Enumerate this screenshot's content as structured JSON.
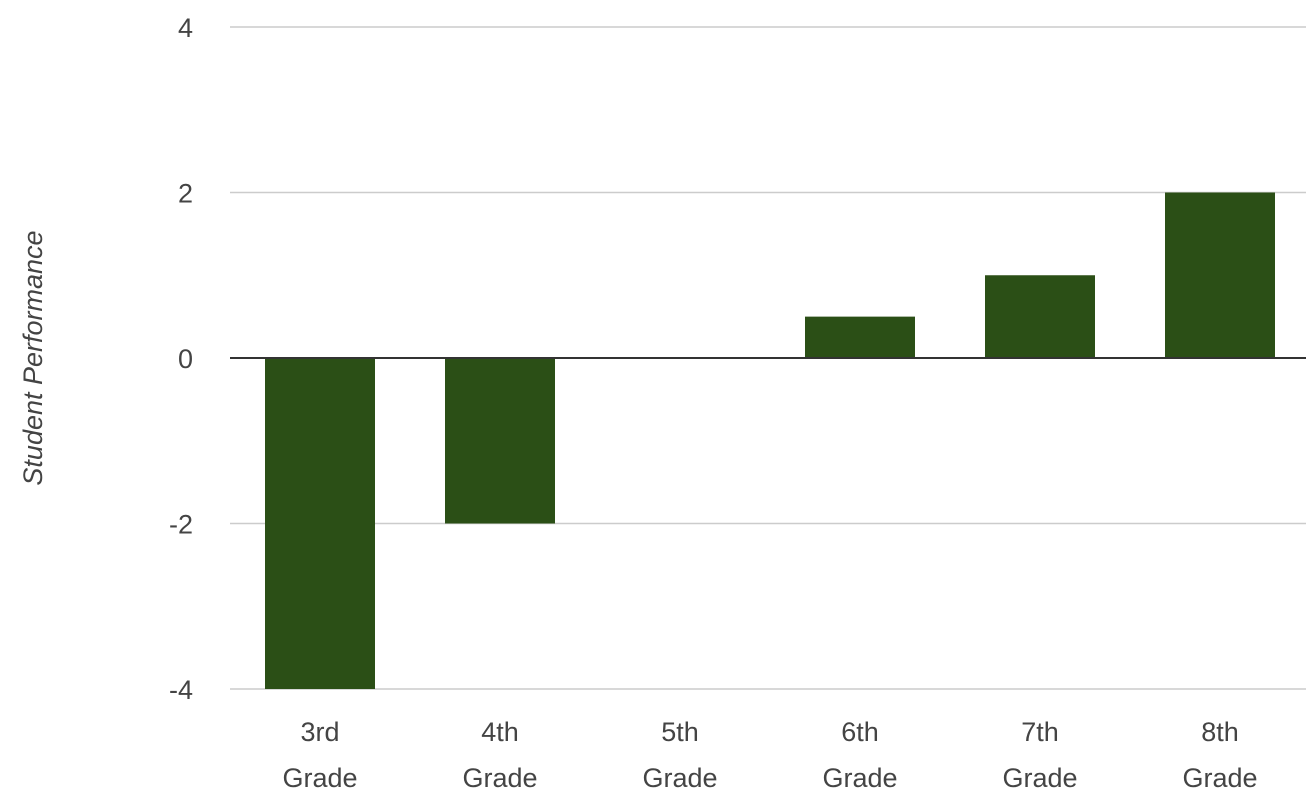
{
  "chart_data": {
    "type": "bar",
    "categories": [
      [
        "3rd",
        "Grade"
      ],
      [
        "4th",
        "Grade"
      ],
      [
        "5th",
        "Grade"
      ],
      [
        "6th",
        "Grade"
      ],
      [
        "7th",
        "Grade"
      ],
      [
        "8th",
        "Grade"
      ]
    ],
    "values": [
      -4,
      -2,
      0,
      0.5,
      1,
      2
    ],
    "ylabel": "Student Performance",
    "xlabel": "",
    "ylim": [
      -4,
      4
    ],
    "yticks": [
      "-4",
      "-2",
      "0",
      "2",
      "4"
    ],
    "ytick_values": [
      -4,
      -2,
      0,
      2,
      4
    ],
    "grid": true,
    "legend": "none",
    "bar_color": "#2b4f16",
    "grid_color": "#cccccc",
    "zero_line_color": "#333333"
  }
}
